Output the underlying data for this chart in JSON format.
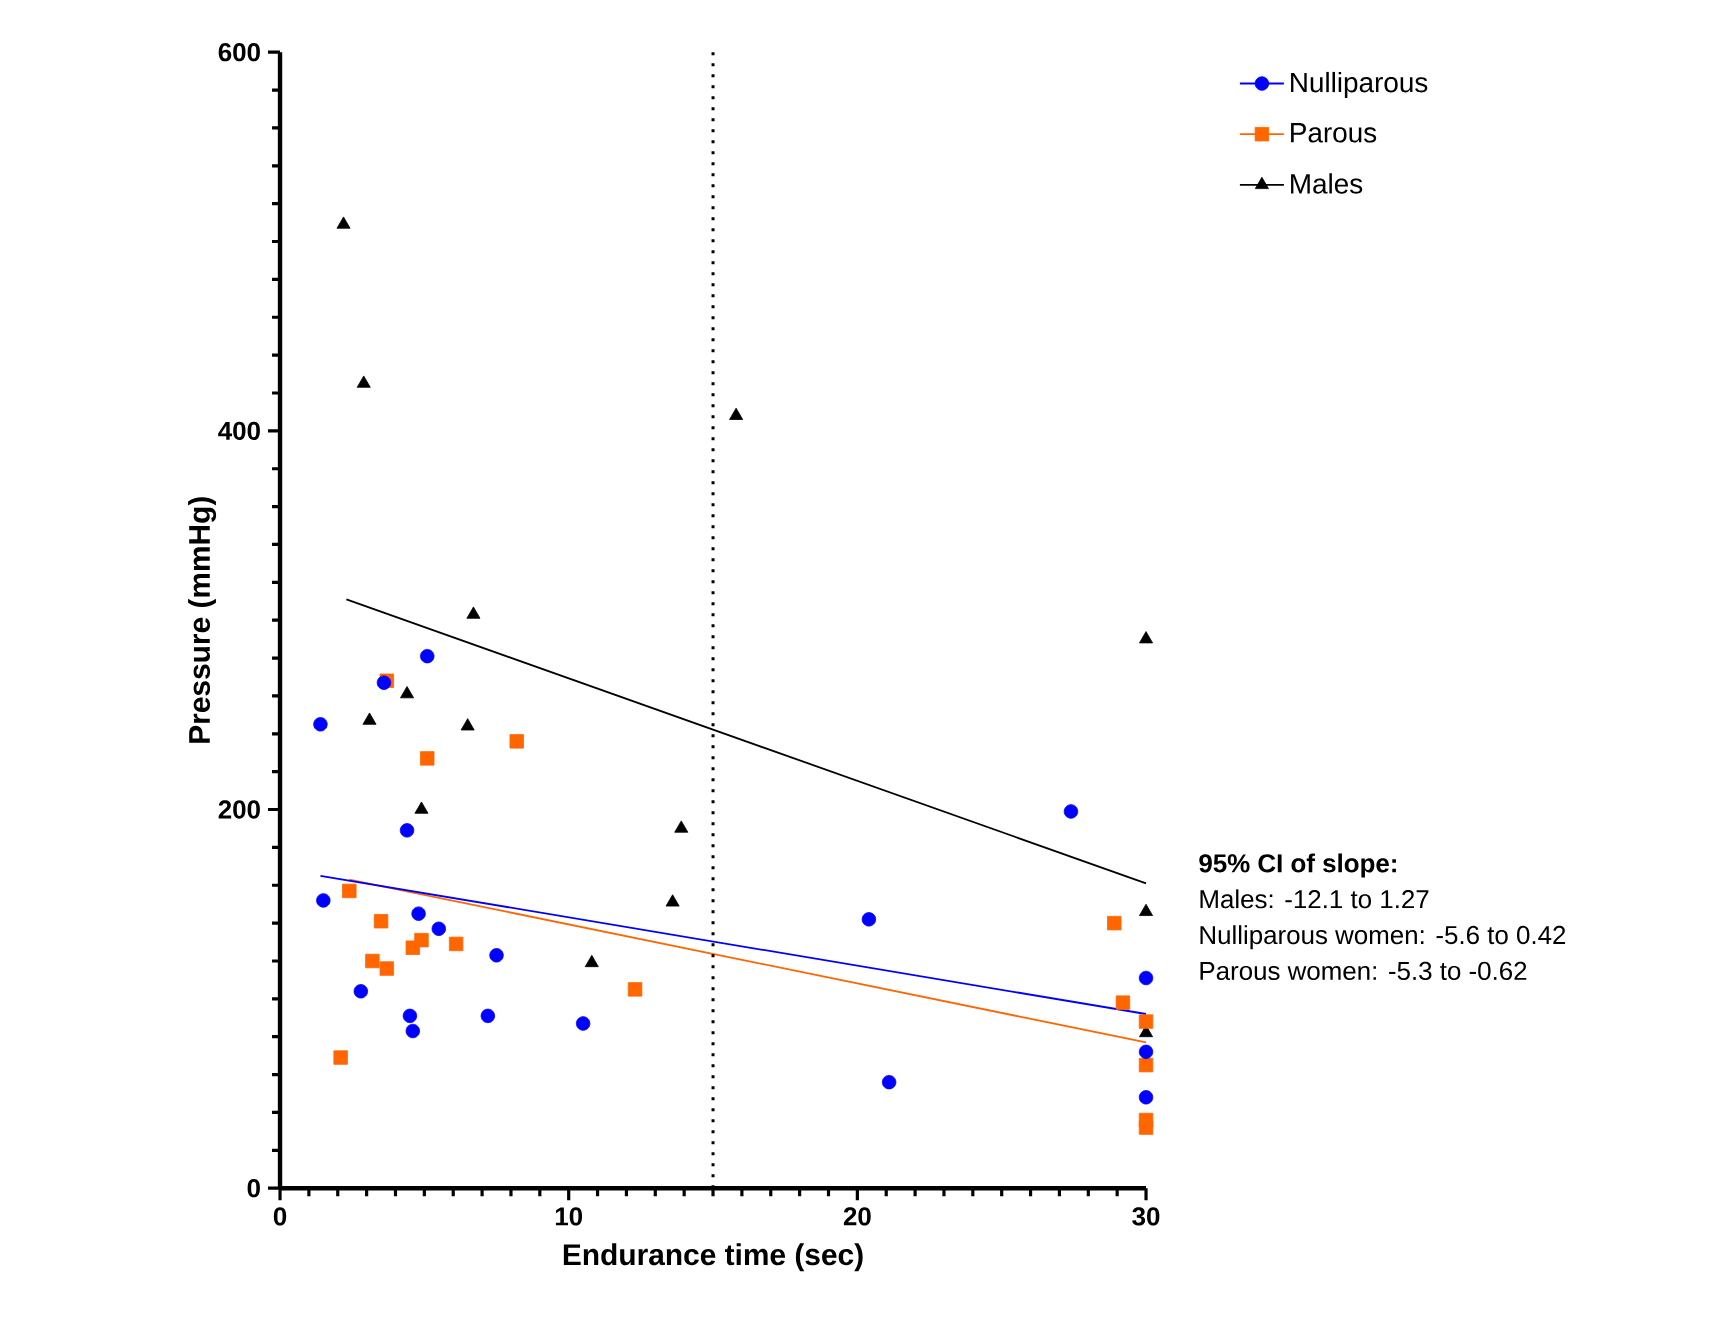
{
  "chart_data": {
    "type": "scatter",
    "xlabel": "Endurance time (sec)",
    "ylabel": "Pressure (mmHg)",
    "xlim": [
      0,
      30
    ],
    "xticks": [
      0,
      10,
      20,
      30
    ],
    "ylim": [
      0,
      600
    ],
    "yticks": [
      0,
      200,
      400,
      600
    ],
    "grid": false,
    "legend": "top right",
    "series": [
      {
        "name": "Nulliparous",
        "color": "#0000ff",
        "marker": "circle",
        "x": [
          5.1,
          3.6,
          1.4,
          4.4,
          1.5,
          4.8,
          5.5,
          7.5,
          2.8,
          4.5,
          7.2,
          4.6,
          10.5,
          27.4,
          20.4,
          21.1,
          30,
          30,
          30
        ],
        "values": [
          281,
          267,
          245,
          189,
          152,
          145,
          137,
          123,
          104,
          91,
          91,
          83,
          87,
          199,
          142,
          56,
          111,
          72,
          48
        ]
      },
      {
        "name": "Parous",
        "color": "#ff6600",
        "marker": "square",
        "x": [
          3.7,
          5.1,
          8.2,
          2.4,
          3.5,
          4.9,
          4.6,
          6.1,
          3.2,
          3.7,
          2.1,
          12.3,
          28.9,
          29.2,
          30,
          30,
          30,
          30
        ],
        "values": [
          268,
          227,
          236,
          157,
          141,
          131,
          127,
          129,
          120,
          116,
          69,
          105,
          140,
          98,
          88,
          65,
          36,
          32
        ]
      },
      {
        "name": "Males",
        "color": "#000000",
        "marker": "triangle",
        "x": [
          2.2,
          2.9,
          6.7,
          4.4,
          3.1,
          6.5,
          4.9,
          15.8,
          30,
          13.9,
          13.6,
          10.8,
          30,
          30
        ],
        "values": [
          509,
          425,
          303,
          261,
          247,
          244,
          200,
          408,
          290,
          190,
          151,
          119,
          146,
          82
        ]
      },
      {
        "type": "line",
        "color": "#000000",
        "marker": "none",
        "x": [
          2.3,
          30
        ],
        "values": [
          311,
          161
        ]
      },
      {
        "type": "line",
        "color": "#0000ff",
        "marker": "none",
        "x": [
          1.4,
          30
        ],
        "values": [
          165,
          92
        ]
      },
      {
        "type": "line",
        "color": "#ff6600",
        "marker": "none",
        "x": [
          2.4,
          30
        ],
        "values": [
          163,
          77
        ]
      }
    ],
    "ref_lines": [
      {
        "axis": "x",
        "value": 15,
        "color": "#000000",
        "line_style": "dotted"
      }
    ],
    "annotations": [
      "95% CI of slope:",
      "Males: -12.1 to 1.27",
      "Nulliparous women: -5.6 to 0.42",
      "Parous women: -5.3 to -0.62"
    ]
  }
}
